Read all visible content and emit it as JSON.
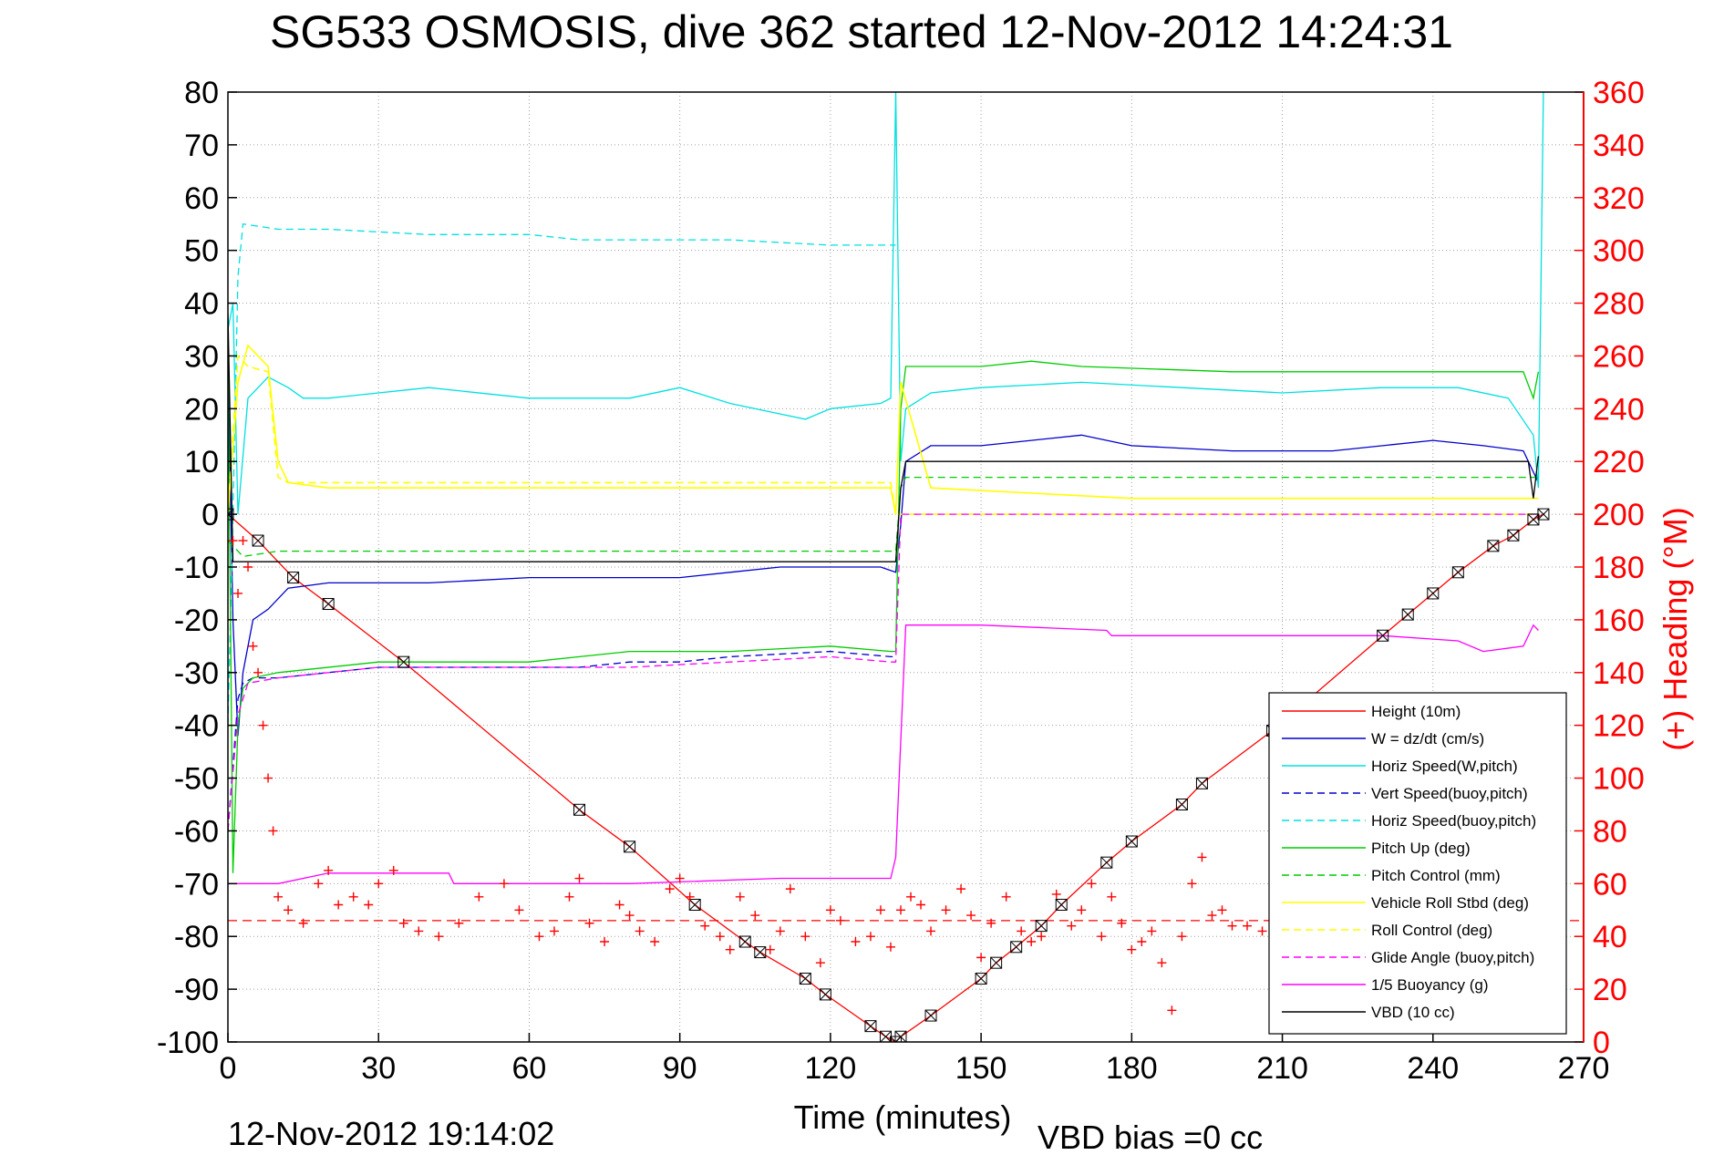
{
  "chart_data": {
    "type": "line",
    "title": "SG533 OSMOSIS, dive 362 started 12-Nov-2012 14:24:31",
    "xlabel": "Time (minutes)",
    "ylabel": "",
    "y2label": "(+) Heading (°M)",
    "xlim": [
      0,
      270
    ],
    "ylim": [
      -100,
      80
    ],
    "y2lim": [
      0,
      360
    ],
    "xticks": [
      "0",
      "30",
      "60",
      "90",
      "120",
      "150",
      "180",
      "210",
      "240",
      "270"
    ],
    "yticks": [
      "80",
      "70",
      "60",
      "50",
      "40",
      "30",
      "20",
      "10",
      "0",
      "-10",
      "-20",
      "-30",
      "-40",
      "-50",
      "-60",
      "-70",
      "-80",
      "-90",
      "-100"
    ],
    "y2ticks": [
      "360",
      "340",
      "320",
      "300",
      "280",
      "260",
      "240",
      "220",
      "200",
      "180",
      "160",
      "140",
      "120",
      "100",
      "80",
      "60",
      "40",
      "20",
      "0"
    ],
    "grid": true,
    "legend_position": "bottom-right",
    "footer_left": "12-Nov-2012 19:14:02",
    "footer_right": "VBD bias =0 cc",
    "series": [
      {
        "name": "Height (10m)",
        "color": "#ff0000",
        "style": "solid",
        "x": [
          0,
          6,
          13,
          20,
          35,
          70,
          80,
          93,
          103,
          106,
          115,
          119,
          128,
          131,
          133,
          134,
          140,
          150,
          153,
          157,
          162,
          166,
          175,
          180,
          190,
          194,
          208,
          230,
          235,
          240,
          245,
          252,
          256,
          260,
          262
        ],
        "y": [
          0,
          -5,
          -12,
          -17,
          -28,
          -56,
          -63,
          -74,
          -81,
          -83,
          -88,
          -91,
          -97,
          -99,
          -100,
          -99,
          -95,
          -88,
          -85,
          -82,
          -78,
          -74,
          -66,
          -62,
          -55,
          -51,
          -41,
          -23,
          -19,
          -15,
          -11,
          -6,
          -4,
          -1,
          0
        ]
      },
      {
        "name": "W = dz/dt (cm/s)",
        "color": "#0000cc",
        "style": "solid",
        "x": [
          0,
          1,
          2,
          3,
          5,
          8,
          12,
          20,
          40,
          60,
          80,
          90,
          100,
          110,
          120,
          130,
          133,
          134,
          135,
          140,
          150,
          160,
          170,
          180,
          200,
          220,
          240,
          250,
          258,
          261
        ],
        "y": [
          30,
          -20,
          -42,
          -30,
          -20,
          -18,
          -14,
          -13,
          -13,
          -12,
          -12,
          -12,
          -11,
          -10,
          -10,
          -10,
          -11,
          -2,
          10,
          13,
          13,
          14,
          15,
          13,
          12,
          12,
          14,
          13,
          12,
          6
        ]
      },
      {
        "name": "Horiz Speed(W,pitch)",
        "color": "#00e0e0",
        "style": "solid",
        "x": [
          0,
          1,
          2,
          4,
          8,
          12,
          15,
          20,
          40,
          60,
          80,
          90,
          100,
          110,
          115,
          120,
          130,
          132,
          133,
          134,
          135,
          140,
          150,
          170,
          190,
          210,
          230,
          245,
          255,
          260,
          261,
          262
        ],
        "y": [
          35,
          40,
          0,
          22,
          26,
          24,
          22,
          22,
          24,
          22,
          22,
          24,
          21,
          19,
          18,
          20,
          21,
          22,
          80,
          10,
          20,
          23,
          24,
          25,
          24,
          23,
          24,
          24,
          22,
          15,
          5,
          80
        ]
      },
      {
        "name": "Vert Speed(buoy,pitch)",
        "color": "#0000cc",
        "style": "dashed",
        "x": [
          0,
          2,
          3,
          5,
          10,
          30,
          60,
          70,
          80,
          90,
          100,
          120,
          132,
          133
        ],
        "y": [
          -60,
          -35,
          -32,
          -31,
          -31,
          -29,
          -29,
          -29,
          -28,
          -28,
          -27,
          -26,
          -27,
          -27
        ]
      },
      {
        "name": "Horiz Speed(buoy,pitch)",
        "color": "#00e0e0",
        "style": "dashed",
        "x": [
          0,
          1,
          2,
          3,
          10,
          20,
          40,
          60,
          70,
          80,
          100,
          120,
          132,
          133
        ],
        "y": [
          -40,
          0,
          45,
          55,
          54,
          54,
          53,
          53,
          52,
          52,
          52,
          51,
          51,
          51
        ]
      },
      {
        "name": "Pitch Up (deg)",
        "color": "#00cc00",
        "style": "solid",
        "x": [
          0,
          1,
          2,
          3,
          5,
          10,
          30,
          60,
          70,
          80,
          100,
          120,
          132,
          133,
          134,
          135,
          140,
          150,
          160,
          170,
          200,
          230,
          250,
          258,
          260,
          261
        ],
        "y": [
          30,
          -68,
          -40,
          -33,
          -31,
          -30,
          -28,
          -28,
          -27,
          -26,
          -26,
          -25,
          -26,
          -26,
          20,
          28,
          28,
          28,
          29,
          28,
          27,
          27,
          27,
          27,
          22,
          27
        ]
      },
      {
        "name": "Pitch Control (mm)",
        "color": "#00cc00",
        "style": "dashed",
        "x": [
          0,
          2,
          3,
          10,
          40,
          80,
          132,
          133,
          134,
          135,
          180,
          261
        ],
        "y": [
          -5,
          -7,
          -8,
          -7,
          -7,
          -7,
          -7,
          -7,
          5,
          7,
          7,
          7
        ]
      },
      {
        "name": "Vehicle Roll Stbd (deg)",
        "color": "#ffff00",
        "style": "solid",
        "x": [
          0,
          2,
          4,
          6,
          8,
          10,
          12,
          20,
          40,
          60,
          80,
          90,
          100,
          120,
          132,
          133,
          134,
          140,
          180,
          220,
          260,
          261
        ],
        "y": [
          0,
          25,
          32,
          30,
          28,
          10,
          6,
          5,
          5,
          5,
          5,
          5,
          5,
          5,
          5,
          0,
          25,
          5,
          3,
          3,
          3,
          3
        ]
      },
      {
        "name": "Roll Control (deg)",
        "color": "#ffff00",
        "style": "dashed",
        "x": [
          0,
          2,
          4,
          8,
          10,
          12,
          30,
          60,
          90,
          120,
          132,
          133,
          134,
          180,
          261
        ],
        "y": [
          0,
          30,
          28,
          27,
          7,
          6,
          6,
          6,
          6,
          6,
          6,
          0,
          0,
          0,
          0
        ]
      },
      {
        "name": "Glide Angle (buoy,pitch)",
        "color": "#ff00ff",
        "style": "dashed",
        "x": [
          0,
          2,
          4,
          10,
          30,
          60,
          80,
          100,
          120,
          132,
          133,
          134,
          261
        ],
        "y": [
          -60,
          -38,
          -32,
          -31,
          -29,
          -29,
          -29,
          -28,
          -27,
          -28,
          -28,
          0,
          0
        ]
      },
      {
        "name": "1/5 Buoyancy (g)",
        "color": "#ff00ff",
        "style": "solid",
        "x": [
          0,
          10,
          20,
          44,
          45,
          80,
          110,
          132,
          133,
          135,
          150,
          175,
          176,
          200,
          230,
          245,
          250,
          258,
          260,
          261
        ],
        "y": [
          -70,
          -70,
          -68,
          -68,
          -70,
          -70,
          -69,
          -69,
          -65,
          -21,
          -21,
          -22,
          -23,
          -23,
          -23,
          -24,
          -26,
          -25,
          -21,
          -22
        ]
      },
      {
        "name": "VBD (10 cc)",
        "color": "#000000",
        "style": "solid",
        "x": [
          0,
          1,
          2,
          40,
          80,
          132,
          133,
          134,
          135,
          136,
          180,
          258,
          259,
          260,
          261
        ],
        "y": [
          38,
          -9,
          -9,
          -9,
          -9,
          -9,
          -9,
          5,
          10,
          10,
          10,
          10,
          10,
          3,
          11
        ]
      }
    ],
    "heading": {
      "name": "(+) Heading (°M)",
      "color": "#ff0000",
      "axis": "right",
      "x": [
        1,
        2,
        3,
        4,
        5,
        6,
        7,
        8,
        9,
        10,
        12,
        15,
        18,
        20,
        22,
        25,
        28,
        30,
        33,
        35,
        38,
        42,
        46,
        50,
        55,
        58,
        62,
        65,
        68,
        70,
        72,
        75,
        78,
        80,
        82,
        85,
        88,
        90,
        92,
        95,
        98,
        100,
        102,
        105,
        108,
        110,
        112,
        115,
        118,
        120,
        122,
        125,
        128,
        130,
        132,
        134,
        136,
        138,
        140,
        143,
        146,
        148,
        150,
        152,
        155,
        158,
        160,
        162,
        165,
        168,
        170,
        172,
        174,
        176,
        178,
        180,
        182,
        184,
        186,
        188,
        190,
        192,
        194,
        196,
        198,
        200,
        203,
        206,
        209
      ],
      "y": [
        190,
        170,
        190,
        180,
        150,
        140,
        120,
        100,
        80,
        55,
        50,
        45,
        60,
        65,
        52,
        55,
        52,
        60,
        65,
        45,
        42,
        40,
        45,
        55,
        60,
        50,
        40,
        42,
        55,
        62,
        45,
        38,
        52,
        48,
        42,
        38,
        58,
        62,
        55,
        44,
        40,
        35,
        55,
        48,
        35,
        42,
        58,
        40,
        30,
        50,
        46,
        38,
        40,
        50,
        36,
        50,
        55,
        52,
        42,
        50,
        58,
        48,
        32,
        45,
        55,
        42,
        38,
        40,
        56,
        44,
        50,
        60,
        40,
        55,
        45,
        35,
        38,
        42,
        30,
        12,
        40,
        60,
        70,
        48,
        50,
        44,
        44,
        42,
        36
      ]
    },
    "heading_target": {
      "y": 46,
      "color": "#ff0000",
      "style": "dashed"
    }
  }
}
